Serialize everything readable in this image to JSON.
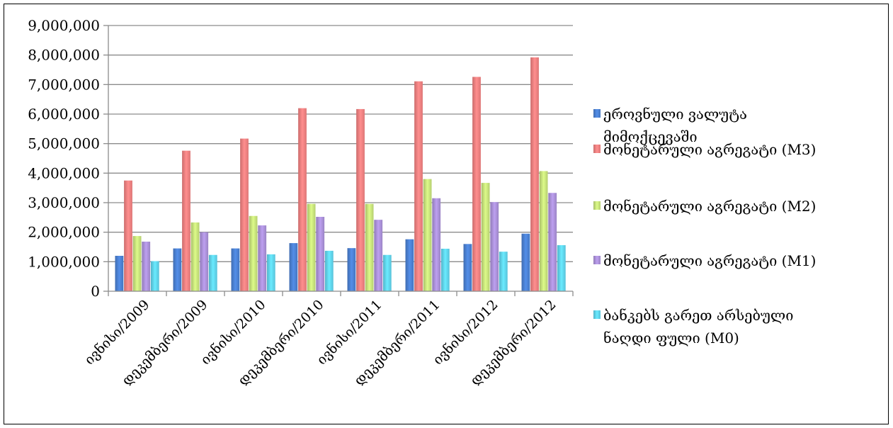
{
  "chart_data": {
    "type": "bar",
    "title": "",
    "xlabel": "",
    "ylabel": "",
    "ylim": [
      0,
      9000000
    ],
    "y_ticks": [
      "0",
      "1,000,000",
      "2,000,000",
      "3,000,000",
      "4,000,000",
      "5,000,000",
      "6,000,000",
      "7,000,000",
      "8,000,000",
      "9,000,000"
    ],
    "y_tick_values": [
      0,
      1000000,
      2000000,
      3000000,
      4000000,
      5000000,
      6000000,
      7000000,
      8000000,
      9000000
    ],
    "grid": true,
    "legend_position": "right",
    "categories": [
      "ივნისი/2009",
      "დეკემბერი/2009",
      "ივნისი/2010",
      "დეკემბერი/2010",
      "ივნისი/2011",
      "დეკემბერი/2011",
      "ივნისი/2012",
      "დეკემბერი/2012"
    ],
    "series": [
      {
        "name_lines": [
          "ეროვნული ვალუტა",
          "მიმოქცევაში"
        ],
        "color": "#4a7fd0",
        "values": [
          1200000,
          1450000,
          1450000,
          1630000,
          1460000,
          1760000,
          1600000,
          1950000
        ]
      },
      {
        "name_lines": [
          "მონეტარული აგრეგატი (M3)"
        ],
        "color": "#f07f7f",
        "values": [
          3750000,
          4760000,
          5170000,
          6200000,
          6170000,
          7110000,
          7260000,
          7920000
        ]
      },
      {
        "name_lines": [
          "მონეტარული აგრეგატი (M2)"
        ],
        "color": "#c5e07a",
        "values": [
          1870000,
          2330000,
          2550000,
          2960000,
          2960000,
          3800000,
          3670000,
          4070000
        ]
      },
      {
        "name_lines": [
          "მონეტარული აგრეგატი (M1)"
        ],
        "color": "#a98fd6",
        "values": [
          1680000,
          2000000,
          2230000,
          2520000,
          2420000,
          3150000,
          3020000,
          3330000
        ]
      },
      {
        "name_lines": [
          "ბანკებს გარეთ არსებული",
          "ნაღდი ფული (M0)"
        ],
        "color": "#5fd2ec",
        "values": [
          1020000,
          1230000,
          1250000,
          1370000,
          1230000,
          1440000,
          1340000,
          1560000
        ]
      }
    ]
  }
}
